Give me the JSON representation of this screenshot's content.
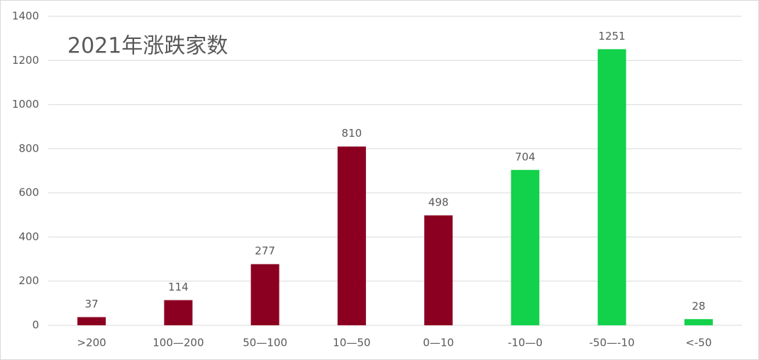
{
  "chart_data": {
    "type": "bar",
    "title": "2021年涨跌家数",
    "categories": [
      ">200",
      "100—200",
      "50—100",
      "10—50",
      "0—10",
      "-10—0",
      "-50—-10",
      "<-50"
    ],
    "values": [
      37,
      114,
      277,
      810,
      498,
      704,
      1251,
      28
    ],
    "colors": [
      "#8b0021",
      "#8b0021",
      "#8b0021",
      "#8b0021",
      "#8b0021",
      "#12d14b",
      "#12d14b",
      "#12d14b"
    ],
    "ylim": [
      0,
      1400
    ],
    "yticks": [
      0,
      200,
      400,
      600,
      800,
      1000,
      1200,
      1400
    ],
    "grid": true
  }
}
